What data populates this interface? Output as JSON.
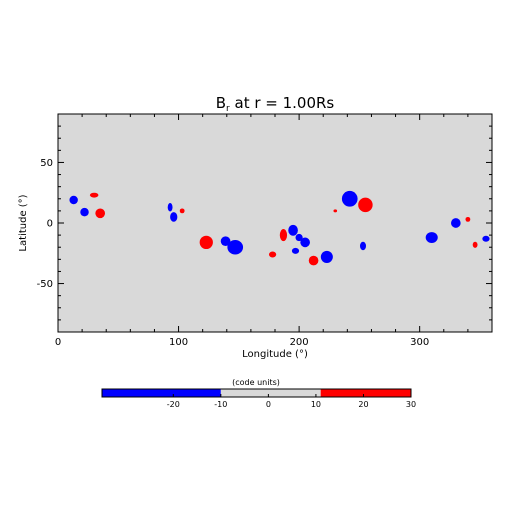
{
  "chart_data": {
    "type": "scatter",
    "title_main": "B",
    "title_sub": "r",
    "title_rest": " at r = 1.00Rs",
    "xlabel": "Longitude (°)",
    "ylabel": "Latitude (°)",
    "xlim": [
      0,
      360
    ],
    "ylim": [
      -90,
      90
    ],
    "xticks": [
      0,
      100,
      200,
      300
    ],
    "yticks": [
      -50,
      0,
      50
    ],
    "background_color": "#d9d9d9",
    "colors": {
      "positive": "#ff0000",
      "negative": "#0000ff"
    },
    "spots": [
      {
        "lon": 13,
        "lat": 19,
        "rx": 3.5,
        "ry": 3.5,
        "polarity": "negative"
      },
      {
        "lon": 22,
        "lat": 9,
        "rx": 3.5,
        "ry": 3.5,
        "polarity": "negative"
      },
      {
        "lon": 30,
        "lat": 23,
        "rx": 3.5,
        "ry": 2,
        "polarity": "positive"
      },
      {
        "lon": 35,
        "lat": 8,
        "rx": 4,
        "ry": 4,
        "polarity": "positive"
      },
      {
        "lon": 93,
        "lat": 13,
        "rx": 2,
        "ry": 3.5,
        "polarity": "negative"
      },
      {
        "lon": 96,
        "lat": 5,
        "rx": 3,
        "ry": 4,
        "polarity": "negative"
      },
      {
        "lon": 103,
        "lat": 10,
        "rx": 2,
        "ry": 2,
        "polarity": "positive"
      },
      {
        "lon": 123,
        "lat": -16,
        "rx": 5.5,
        "ry": 5.5,
        "polarity": "positive"
      },
      {
        "lon": 139,
        "lat": -15,
        "rx": 4,
        "ry": 4,
        "polarity": "negative"
      },
      {
        "lon": 147,
        "lat": -20,
        "rx": 6.5,
        "ry": 6,
        "polarity": "negative"
      },
      {
        "lon": 178,
        "lat": -26,
        "rx": 3,
        "ry": 2.5,
        "polarity": "positive"
      },
      {
        "lon": 187,
        "lat": -10,
        "rx": 3,
        "ry": 5,
        "polarity": "positive"
      },
      {
        "lon": 195,
        "lat": -6,
        "rx": 4,
        "ry": 4.5,
        "polarity": "negative"
      },
      {
        "lon": 200,
        "lat": -12,
        "rx": 3,
        "ry": 3,
        "polarity": "negative"
      },
      {
        "lon": 205,
        "lat": -16,
        "rx": 4,
        "ry": 4,
        "polarity": "negative"
      },
      {
        "lon": 197,
        "lat": -23,
        "rx": 3,
        "ry": 2.5,
        "polarity": "negative"
      },
      {
        "lon": 212,
        "lat": -31,
        "rx": 4,
        "ry": 4,
        "polarity": "positive"
      },
      {
        "lon": 223,
        "lat": -28,
        "rx": 5,
        "ry": 5,
        "polarity": "negative"
      },
      {
        "lon": 230,
        "lat": 10,
        "rx": 1.5,
        "ry": 1.2,
        "polarity": "positive"
      },
      {
        "lon": 242,
        "lat": 20,
        "rx": 6.5,
        "ry": 6.5,
        "polarity": "negative"
      },
      {
        "lon": 255,
        "lat": 15,
        "rx": 6,
        "ry": 6,
        "polarity": "positive"
      },
      {
        "lon": 253,
        "lat": -19,
        "rx": 2.5,
        "ry": 3.5,
        "polarity": "negative"
      },
      {
        "lon": 310,
        "lat": -12,
        "rx": 5,
        "ry": 4.5,
        "polarity": "negative"
      },
      {
        "lon": 330,
        "lat": 0,
        "rx": 4,
        "ry": 4,
        "polarity": "negative"
      },
      {
        "lon": 340,
        "lat": 3,
        "rx": 2,
        "ry": 2,
        "polarity": "positive"
      },
      {
        "lon": 346,
        "lat": -18,
        "rx": 2,
        "ry": 2.5,
        "polarity": "positive"
      },
      {
        "lon": 355,
        "lat": -13,
        "rx": 3,
        "ry": 2.5,
        "polarity": "negative"
      }
    ],
    "colorbar": {
      "label": "(code units)",
      "range": [
        -35,
        30
      ],
      "ticks": [
        -20,
        -10,
        0,
        10,
        20,
        30
      ],
      "segments": [
        {
          "from": -35,
          "to": -10,
          "color": "#0000ff"
        },
        {
          "from": -10,
          "to": 11,
          "color": "#d9d9d9"
        },
        {
          "from": 11,
          "to": 30,
          "color": "#ff0000"
        }
      ]
    }
  }
}
